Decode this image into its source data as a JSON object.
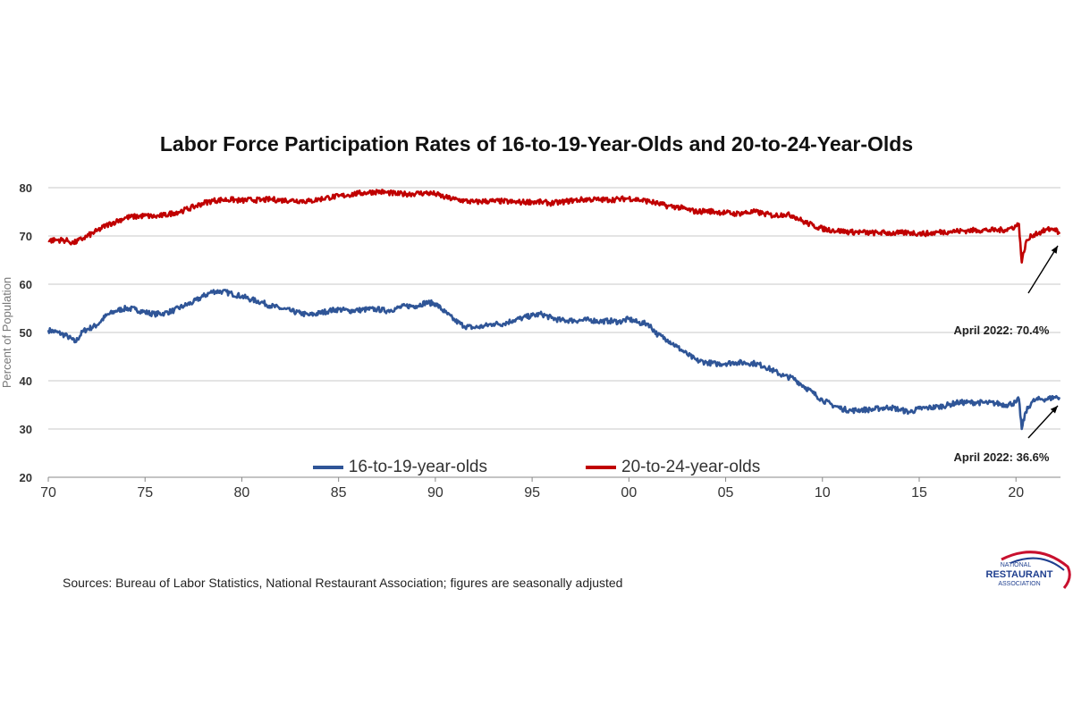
{
  "chart_data": {
    "type": "line",
    "title": "Labor Force Participation Rates of 16-to-19-Year-Olds and 20-to-24-Year-Olds",
    "ylabel": "Percent of Population",
    "xlabel": "",
    "ylim": [
      20,
      80
    ],
    "xlim": [
      1970,
      2022.3
    ],
    "yticks": [
      20,
      30,
      40,
      50,
      60,
      70,
      80
    ],
    "yticklabels": [
      "20",
      "30",
      "40",
      "50",
      "60",
      "70",
      "80"
    ],
    "xticks": [
      1970,
      1975,
      1980,
      1985,
      1990,
      1995,
      2000,
      2005,
      2010,
      2015,
      2020
    ],
    "xticklabels": [
      "70",
      "75",
      "80",
      "85",
      "90",
      "95",
      "00",
      "05",
      "10",
      "15",
      "20"
    ],
    "grid": true,
    "legend_position": "bottom",
    "series": [
      {
        "name": "16-to-19-year-olds",
        "color": "#2f5597",
        "x": [
          1970,
          1970.5,
          1971,
          1971.4,
          1971.8,
          1972.5,
          1973,
          1973.5,
          1974,
          1974.5,
          1975,
          1975.5,
          1976,
          1976.5,
          1977,
          1977.5,
          1978,
          1978.5,
          1979,
          1979.5,
          1980,
          1980.5,
          1981,
          1981.5,
          1982,
          1982.5,
          1983,
          1983.5,
          1984,
          1984.5,
          1985,
          1985.5,
          1986,
          1986.5,
          1987,
          1987.5,
          1988,
          1988.5,
          1989,
          1989.5,
          1990,
          1990.5,
          1991,
          1991.5,
          1992,
          1992.5,
          1993,
          1993.5,
          1994,
          1994.5,
          1995,
          1995.5,
          1996,
          1996.5,
          1997,
          1997.5,
          1998,
          1998.5,
          1999,
          1999.5,
          2000,
          2000.5,
          2001,
          2001.5,
          2002,
          2002.5,
          2003,
          2003.5,
          2004,
          2004.5,
          2005,
          2005.5,
          2006,
          2006.5,
          2007,
          2007.5,
          2008,
          2008.5,
          2009,
          2009.5,
          2010,
          2010.5,
          2011,
          2011.5,
          2012,
          2012.5,
          2013,
          2013.5,
          2014,
          2014.5,
          2015,
          2015.5,
          2016,
          2016.5,
          2017,
          2017.5,
          2018,
          2018.5,
          2019,
          2019.5,
          2020,
          2020.15,
          2020.3,
          2020.5,
          2020.8,
          2021,
          2021.3,
          2021.6,
          2022,
          2022.25
        ],
        "values": [
          50.5,
          50.0,
          49.2,
          48.0,
          50.3,
          51.5,
          53.5,
          54.5,
          55.0,
          54.8,
          54.2,
          53.8,
          54.0,
          54.6,
          55.5,
          56.3,
          57.5,
          58.5,
          58.5,
          58.0,
          57.5,
          56.8,
          56.3,
          55.5,
          55.0,
          54.5,
          54.0,
          53.6,
          54.0,
          54.5,
          54.8,
          54.5,
          54.6,
          54.8,
          54.8,
          54.5,
          55.0,
          55.5,
          55.5,
          56.2,
          56.0,
          54.2,
          52.5,
          51.3,
          51.0,
          51.3,
          51.8,
          51.8,
          52.5,
          53.0,
          53.5,
          53.8,
          53.0,
          52.5,
          52.5,
          52.5,
          52.6,
          52.3,
          52.4,
          52.2,
          52.8,
          52.0,
          51.8,
          49.5,
          48.5,
          47.0,
          45.5,
          44.2,
          43.8,
          43.5,
          43.6,
          43.8,
          43.7,
          43.6,
          43.0,
          42.0,
          41.0,
          40.5,
          39.0,
          37.5,
          36.0,
          35.0,
          34.2,
          33.8,
          34.0,
          34.0,
          34.3,
          34.5,
          34.0,
          33.5,
          34.2,
          34.4,
          34.6,
          35.0,
          35.5,
          35.5,
          35.5,
          35.4,
          35.3,
          35.0,
          35.5,
          36.2,
          30.0,
          33.5,
          35.5,
          36.0,
          36.2,
          36.2,
          36.6,
          36.6
        ]
      },
      {
        "name": "20-to-24-year-olds",
        "color": "#c00000",
        "x": [
          1970,
          1970.5,
          1971,
          1971.3,
          1971.8,
          1972.5,
          1973,
          1973.5,
          1974,
          1974.5,
          1975,
          1975.5,
          1976,
          1976.5,
          1977,
          1977.5,
          1978,
          1978.5,
          1979,
          1979.5,
          1980,
          1980.5,
          1981,
          1981.5,
          1982,
          1982.5,
          1983,
          1983.5,
          1984,
          1984.5,
          1985,
          1985.5,
          1986,
          1986.5,
          1987,
          1987.5,
          1988,
          1988.5,
          1989,
          1989.5,
          1990,
          1990.5,
          1991,
          1991.5,
          1992,
          1992.5,
          1993,
          1993.5,
          1994,
          1994.5,
          1995,
          1995.5,
          1996,
          1996.5,
          1997,
          1997.5,
          1998,
          1998.5,
          1999,
          1999.5,
          2000,
          2000.5,
          2001,
          2001.5,
          2002,
          2002.5,
          2003,
          2003.5,
          2004,
          2004.5,
          2005,
          2005.5,
          2006,
          2006.5,
          2007,
          2007.5,
          2008,
          2008.5,
          2009,
          2009.5,
          2010,
          2010.5,
          2011,
          2011.5,
          2012,
          2012.5,
          2013,
          2013.5,
          2014,
          2014.5,
          2015,
          2015.5,
          2016,
          2016.5,
          2017,
          2017.5,
          2018,
          2018.5,
          2019,
          2019.5,
          2020,
          2020.15,
          2020.3,
          2020.5,
          2020.8,
          2021,
          2021.3,
          2021.6,
          2022,
          2022.25
        ],
        "values": [
          69.0,
          69.2,
          69.0,
          68.5,
          69.5,
          71.0,
          72.2,
          73.0,
          73.8,
          74.0,
          74.2,
          74.0,
          74.3,
          74.8,
          75.3,
          76.0,
          76.8,
          77.3,
          77.5,
          77.5,
          77.3,
          77.5,
          77.4,
          77.6,
          77.4,
          77.4,
          77.3,
          77.2,
          77.6,
          78.0,
          78.2,
          78.5,
          78.8,
          79.0,
          79.2,
          79.0,
          78.7,
          78.7,
          78.8,
          78.9,
          78.7,
          78.0,
          77.6,
          77.3,
          77.0,
          77.2,
          77.2,
          77.2,
          77.0,
          77.0,
          77.1,
          77.0,
          76.8,
          77.0,
          77.3,
          77.5,
          77.6,
          77.5,
          77.5,
          77.6,
          77.8,
          77.5,
          77.2,
          76.7,
          76.2,
          76.0,
          75.5,
          75.0,
          75.2,
          75.0,
          74.8,
          74.6,
          74.8,
          75.0,
          74.6,
          74.2,
          74.5,
          74.2,
          73.0,
          72.2,
          71.5,
          71.2,
          71.0,
          70.8,
          70.8,
          70.6,
          70.7,
          70.6,
          70.6,
          70.7,
          70.5,
          70.5,
          70.8,
          70.9,
          71.0,
          71.1,
          71.2,
          71.2,
          71.2,
          71.3,
          72.0,
          72.5,
          64.5,
          68.5,
          70.0,
          70.5,
          70.8,
          71.3,
          71.5,
          70.4
        ]
      }
    ],
    "annotations": [
      {
        "text": "April 2022: 70.4%",
        "x": 2022.25,
        "y": 70.4
      },
      {
        "text": "April 2022: 36.6%",
        "x": 2022.25,
        "y": 36.6
      }
    ]
  },
  "source_note": "Sources: Bureau of Labor Statistics, National Restaurant Association; figures are seasonally adjusted",
  "logo": {
    "line1": "NATIONAL",
    "line2": "RESTAURANT",
    "line3": "ASSOCIATION",
    "colors": [
      "#1f3f8f",
      "#c8102e"
    ]
  }
}
